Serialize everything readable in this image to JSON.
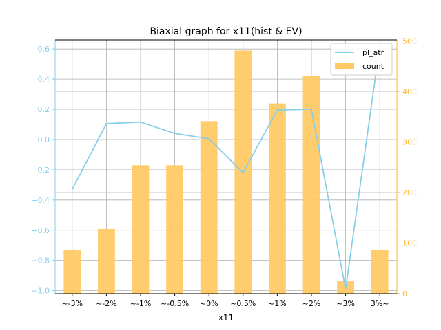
{
  "chart_data": {
    "type": "bar+line",
    "title": "Biaxial graph for x11(hist & EV)",
    "xlabel": "x11",
    "categories": [
      "~-3%",
      "~-2%",
      "~-1%",
      "~-0.5%",
      "~0%",
      "~0.5%",
      "~1%",
      "~2%",
      "~3%",
      "3%~"
    ],
    "series": [
      {
        "name": "pl_atr",
        "type": "line",
        "axis": "left",
        "color": "#87CEEB",
        "values": [
          -0.33,
          0.105,
          0.115,
          0.04,
          0.005,
          -0.22,
          0.195,
          0.2,
          -0.99,
          0.62
        ]
      },
      {
        "name": "count",
        "type": "bar",
        "axis": "right",
        "color": "#FFC966",
        "values": [
          87,
          128,
          254,
          254,
          341,
          481,
          376,
          431,
          25,
          86
        ]
      }
    ],
    "y_left": {
      "ylim": [
        -1.02,
        0.66
      ],
      "ticks": [
        "−1.0",
        "−0.8",
        "−0.6",
        "−0.4",
        "−0.2",
        "0.0",
        "0.2",
        "0.4",
        "0.6"
      ],
      "tick_values": [
        -1.0,
        -0.8,
        -0.6,
        -0.4,
        -0.2,
        0.0,
        0.2,
        0.4,
        0.6
      ],
      "color": "#87CEEB"
    },
    "y_right": {
      "ylim": [
        0,
        502
      ],
      "ticks": [
        "0",
        "100",
        "200",
        "300",
        "400",
        "500"
      ],
      "tick_values": [
        0,
        100,
        200,
        300,
        400,
        500
      ],
      "color": "#FFB733"
    },
    "grid": true,
    "legend": "top-right"
  }
}
